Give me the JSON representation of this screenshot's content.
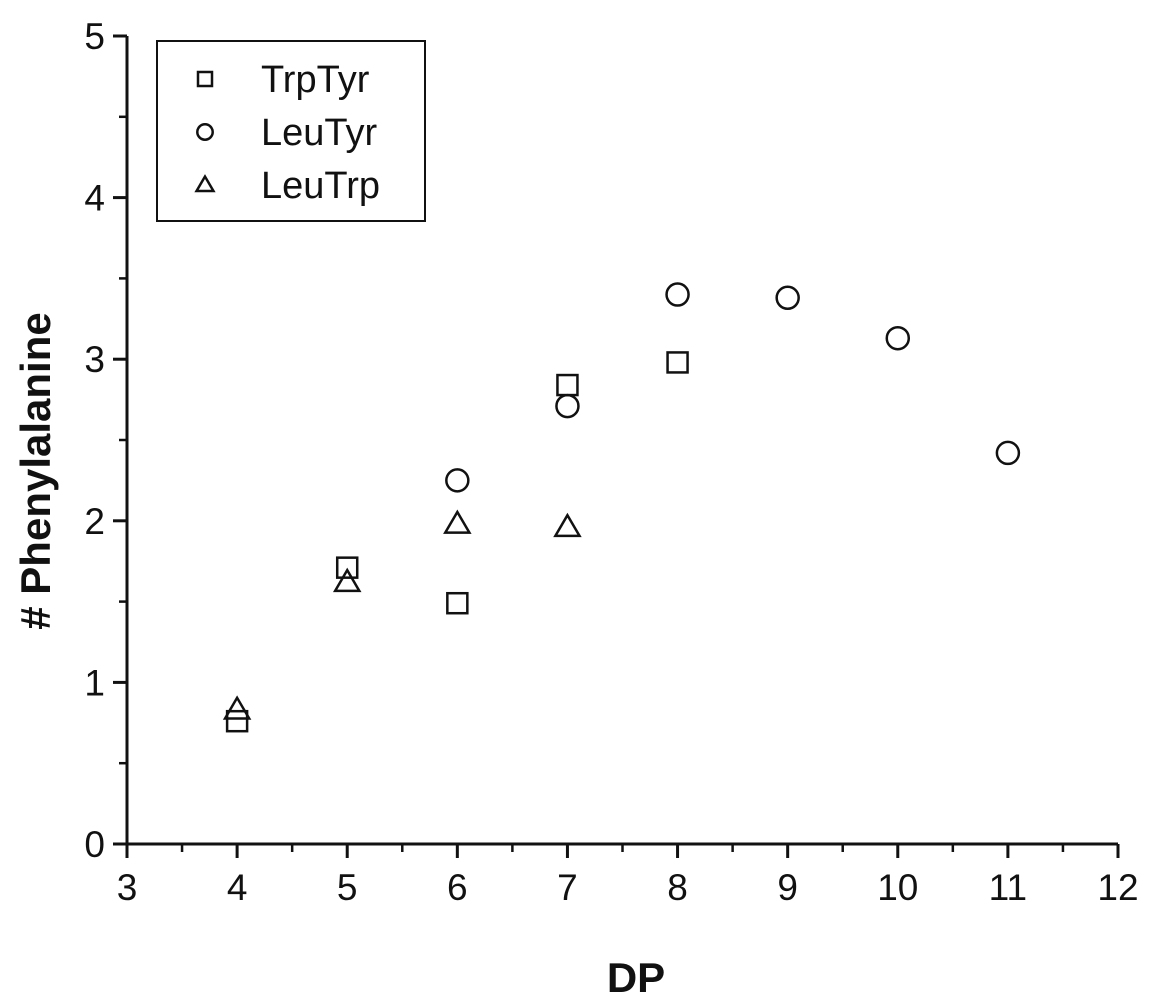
{
  "chart_data": {
    "type": "scatter",
    "title": "",
    "xlabel": "DP",
    "ylabel": "# Phenylalanine",
    "xlim": [
      3,
      12
    ],
    "ylim": [
      0,
      5
    ],
    "x_ticks": [
      "3",
      "4",
      "5",
      "6",
      "7",
      "8",
      "9",
      "10",
      "11",
      "12"
    ],
    "y_ticks": [
      "0",
      "1",
      "2",
      "3",
      "4",
      "5"
    ],
    "grid": false,
    "legend_position": "top-left",
    "marker_color": "#111111",
    "series": [
      {
        "name": "TrpTyr",
        "marker": "square",
        "points": [
          {
            "x": 4,
            "y": 0.76
          },
          {
            "x": 5,
            "y": 1.71
          },
          {
            "x": 6,
            "y": 1.49
          },
          {
            "x": 7,
            "y": 2.84
          },
          {
            "x": 8,
            "y": 2.98
          }
        ]
      },
      {
        "name": "LeuTyr",
        "marker": "circle",
        "points": [
          {
            "x": 6,
            "y": 2.25
          },
          {
            "x": 7,
            "y": 2.71
          },
          {
            "x": 8,
            "y": 3.4
          },
          {
            "x": 9,
            "y": 3.38
          },
          {
            "x": 10,
            "y": 3.13
          },
          {
            "x": 11,
            "y": 2.42
          }
        ]
      },
      {
        "name": "LeuTrp",
        "marker": "triangle",
        "points": [
          {
            "x": 4,
            "y": 0.83
          },
          {
            "x": 5,
            "y": 1.62
          },
          {
            "x": 6,
            "y": 1.98
          },
          {
            "x": 7,
            "y": 1.96
          }
        ]
      }
    ]
  }
}
